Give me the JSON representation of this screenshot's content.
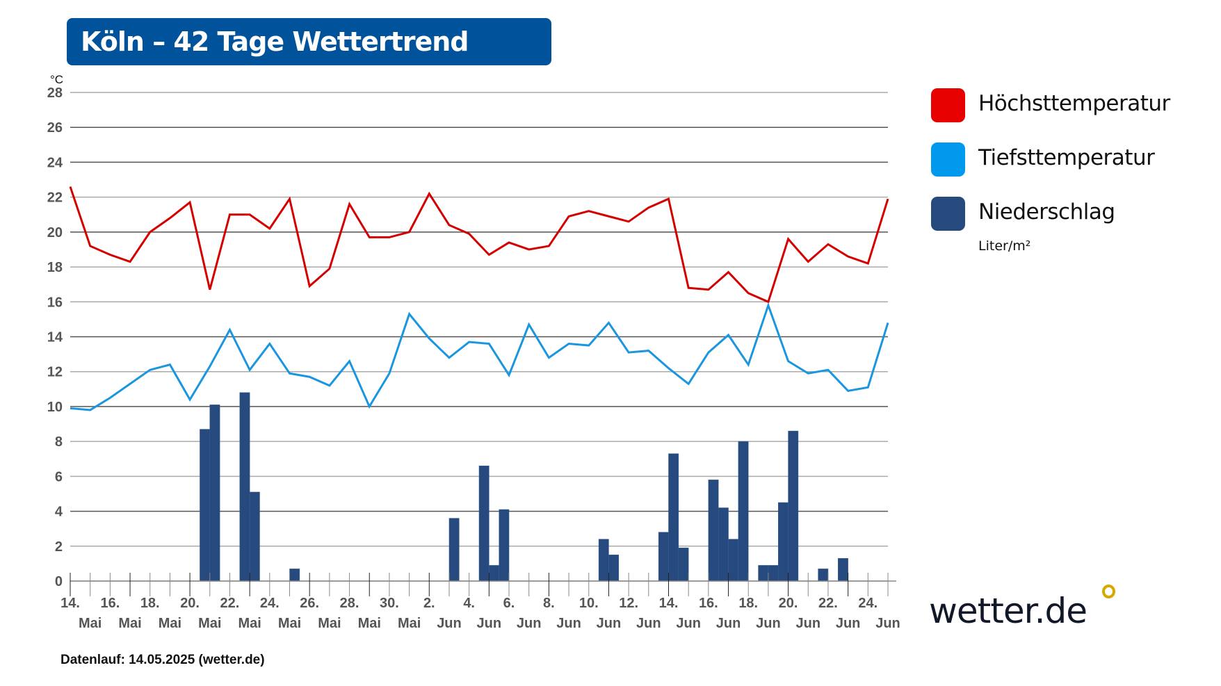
{
  "title": "Köln – 42 Tage Wettertrend",
  "footer": "Datenlauf: 14.05.2025 (wetter.de)",
  "logo_text": "wetter.de",
  "legend": [
    {
      "label": "Höchsttemperatur",
      "color": "#e60000"
    },
    {
      "label": "Tiefsttemperatur",
      "color": "#0099ee"
    },
    {
      "label": "Niederschlag",
      "color": "#264a7e",
      "unit": "Liter/m²"
    }
  ],
  "chart_data": {
    "type": "line+bar",
    "title": "Köln – 42 Tage Wettertrend",
    "ylabel": "°C",
    "ylim": [
      0,
      28
    ],
    "yticks": [
      0,
      2,
      4,
      6,
      8,
      10,
      12,
      14,
      16,
      18,
      20,
      22,
      24,
      26,
      28
    ],
    "grid": true,
    "legend_position": "right",
    "x_date_labels": [
      "14.",
      "16.",
      "18.",
      "20.",
      "22.",
      "24.",
      "26.",
      "28.",
      "30.",
      "2.",
      "4.",
      "6.",
      "8.",
      "10.",
      "12.",
      "14.",
      "16.",
      "18.",
      "20.",
      "22.",
      "24."
    ],
    "x_month_labels": [
      "Mai",
      "Mai",
      "Mai",
      "Mai",
      "Mai",
      "Mai",
      "Mai",
      "Mai",
      "Mai",
      "Jun",
      "Jun",
      "Jun",
      "Jun",
      "Jun",
      "Jun",
      "Jun",
      "Jun",
      "Jun",
      "Jun",
      "Jun",
      "Jun"
    ],
    "dates": [
      "14.05.",
      "15.05.",
      "16.05.",
      "17.05.",
      "18.05.",
      "19.05.",
      "20.05.",
      "21.05.",
      "22.05.",
      "23.05.",
      "24.05.",
      "25.05.",
      "26.05.",
      "27.05.",
      "28.05.",
      "29.05.",
      "30.05.",
      "31.05.",
      "01.06.",
      "02.06.",
      "03.06.",
      "04.06.",
      "05.06.",
      "06.06.",
      "07.06.",
      "08.06.",
      "09.06.",
      "10.06.",
      "11.06.",
      "12.06.",
      "13.06.",
      "14.06.",
      "15.06.",
      "16.06.",
      "17.06.",
      "18.06.",
      "19.06.",
      "20.06.",
      "21.06.",
      "22.06.",
      "23.06.",
      "24.06."
    ],
    "series": [
      {
        "name": "Höchsttemperatur",
        "color": "#d40000",
        "values": [
          22.6,
          19.2,
          18.7,
          18.3,
          20.0,
          20.8,
          21.7,
          16.7,
          21.0,
          21.0,
          20.2,
          21.9,
          16.9,
          17.9,
          21.6,
          19.7,
          19.7,
          20.0,
          22.2,
          20.4,
          19.9,
          18.7,
          19.4,
          19.0,
          19.2,
          20.9,
          21.2,
          20.9,
          20.6,
          21.4,
          21.9,
          16.8,
          16.7,
          17.7,
          16.5,
          16.0,
          19.6,
          18.3,
          19.3,
          18.6,
          18.2,
          21.9
        ]
      },
      {
        "name": "Tiefsttemperatur",
        "color": "#1a96e0",
        "values": [
          9.9,
          9.8,
          10.5,
          11.3,
          12.1,
          12.4,
          10.4,
          12.3,
          14.4,
          12.1,
          13.6,
          11.9,
          11.7,
          11.2,
          12.6,
          10.0,
          11.9,
          15.3,
          13.9,
          12.8,
          13.7,
          13.6,
          11.8,
          14.7,
          12.8,
          13.6,
          13.5,
          14.8,
          13.1,
          13.2,
          12.2,
          11.3,
          13.1,
          14.1,
          12.4,
          15.8,
          12.6,
          11.9,
          12.1,
          10.9,
          11.1,
          14.8
        ]
      }
    ],
    "precipitation": {
      "name": "Niederschlag",
      "unit": "Liter/m²",
      "color": "#264a7e",
      "bars": [
        {
          "date": "20.05.",
          "half": "PM",
          "value": 8.7
        },
        {
          "date": "21.05.",
          "half": "AM",
          "value": 10.1
        },
        {
          "date": "22.05.",
          "half": "PM",
          "value": 10.8
        },
        {
          "date": "23.05.",
          "half": "AM",
          "value": 5.1
        },
        {
          "date": "25.05.",
          "half": "AM",
          "value": 0.7
        },
        {
          "date": "02.06.",
          "half": "AM",
          "value": 3.6
        },
        {
          "date": "03.06.",
          "half": "PM",
          "value": 6.6
        },
        {
          "date": "04.06.",
          "half": "AM",
          "value": 0.9
        },
        {
          "date": "04.06.",
          "half": "PM",
          "value": 4.1
        },
        {
          "date": "09.06.",
          "half": "PM",
          "value": 2.4
        },
        {
          "date": "10.06.",
          "half": "AM",
          "value": 1.5
        },
        {
          "date": "12.06.",
          "half": "PM",
          "value": 2.8
        },
        {
          "date": "13.06.",
          "half": "AM",
          "value": 7.3
        },
        {
          "date": "13.06.",
          "half": "PM",
          "value": 1.9
        },
        {
          "date": "15.06.",
          "half": "AM",
          "value": 5.8
        },
        {
          "date": "15.06.",
          "half": "PM",
          "value": 4.2
        },
        {
          "date": "16.06.",
          "half": "AM",
          "value": 2.4
        },
        {
          "date": "16.06.",
          "half": "PM",
          "value": 8.0
        },
        {
          "date": "17.06.",
          "half": "PM",
          "value": 0.9
        },
        {
          "date": "18.06.",
          "half": "AM",
          "value": 0.9
        },
        {
          "date": "18.06.",
          "half": "PM",
          "value": 4.5
        },
        {
          "date": "19.06.",
          "half": "AM",
          "value": 8.6
        },
        {
          "date": "20.06.",
          "half": "PM",
          "value": 0.7
        },
        {
          "date": "21.06.",
          "half": "PM",
          "value": 1.3
        }
      ]
    }
  }
}
